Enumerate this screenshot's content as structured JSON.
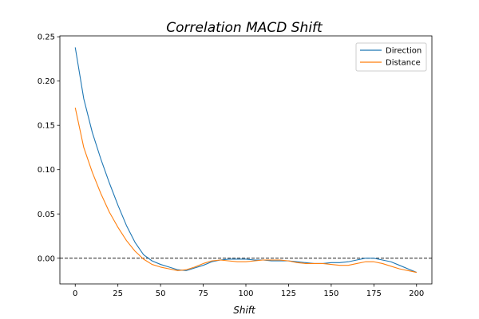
{
  "chart_data": {
    "type": "line",
    "title": "Correlation MACD Shift",
    "xlabel": "Shift",
    "ylabel": "",
    "xlim": [
      -9,
      209
    ],
    "ylim": [
      -0.029,
      0.251
    ],
    "xticks": [
      0,
      25,
      50,
      75,
      100,
      125,
      150,
      175,
      200
    ],
    "xtick_labels": [
      "0",
      "25",
      "50",
      "75",
      "100",
      "125",
      "150",
      "175",
      "200"
    ],
    "yticks": [
      0.0,
      0.05,
      0.1,
      0.15,
      0.2,
      0.25
    ],
    "ytick_labels": [
      "0.00",
      "0.05",
      "0.10",
      "0.15",
      "0.20",
      "0.25"
    ],
    "grid": false,
    "legend_position": "top-right",
    "reference_line": {
      "y": 0,
      "style": "dashed",
      "color": "#000000"
    },
    "x": [
      0,
      5,
      10,
      15,
      20,
      25,
      30,
      35,
      40,
      45,
      50,
      55,
      60,
      65,
      70,
      75,
      80,
      85,
      90,
      95,
      100,
      105,
      110,
      115,
      120,
      125,
      130,
      135,
      140,
      145,
      150,
      155,
      160,
      165,
      170,
      175,
      180,
      185,
      190,
      195,
      200
    ],
    "series": [
      {
        "name": "Direction",
        "color": "#1f77b4",
        "values": [
          0.238,
          0.18,
          0.142,
          0.112,
          0.085,
          0.06,
          0.037,
          0.018,
          0.004,
          -0.003,
          -0.007,
          -0.01,
          -0.013,
          -0.014,
          -0.011,
          -0.008,
          -0.004,
          -0.002,
          -0.001,
          -0.001,
          -0.001,
          -0.002,
          -0.002,
          -0.003,
          -0.003,
          -0.003,
          -0.004,
          -0.005,
          -0.006,
          -0.006,
          -0.005,
          -0.005,
          -0.004,
          -0.002,
          0.0,
          0.0,
          -0.002,
          -0.004,
          -0.008,
          -0.012,
          -0.016
        ]
      },
      {
        "name": "Distance",
        "color": "#ff7f0e",
        "values": [
          0.17,
          0.125,
          0.097,
          0.073,
          0.052,
          0.035,
          0.02,
          0.008,
          -0.001,
          -0.007,
          -0.01,
          -0.012,
          -0.014,
          -0.013,
          -0.01,
          -0.006,
          -0.003,
          -0.002,
          -0.003,
          -0.004,
          -0.004,
          -0.003,
          -0.002,
          -0.002,
          -0.002,
          -0.003,
          -0.005,
          -0.006,
          -0.006,
          -0.006,
          -0.007,
          -0.008,
          -0.008,
          -0.006,
          -0.004,
          -0.004,
          -0.006,
          -0.009,
          -0.012,
          -0.014,
          -0.016
        ]
      }
    ]
  }
}
